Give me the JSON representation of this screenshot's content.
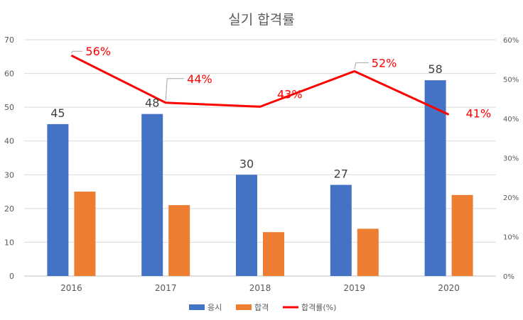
{
  "chart_data": {
    "type": "bar",
    "title": "실기 합격률",
    "categories": [
      "2016",
      "2017",
      "2018",
      "2019",
      "2020"
    ],
    "series": [
      {
        "name": "응시",
        "type": "bar",
        "axis": "left",
        "color": "#4472C4",
        "values": [
          45,
          48,
          30,
          27,
          58
        ]
      },
      {
        "name": "합격",
        "type": "bar",
        "axis": "left",
        "color": "#ED7D31",
        "values": [
          25,
          21,
          13,
          14,
          24
        ]
      },
      {
        "name": "합격률(%)",
        "type": "line",
        "axis": "right",
        "color": "#FF0000",
        "values": [
          56,
          44,
          43,
          52,
          41
        ]
      }
    ],
    "data_labels": {
      "applicants": [
        "45",
        "48",
        "30",
        "27",
        "58"
      ],
      "pass_rate": [
        "56%",
        "44%",
        "43%",
        "52%",
        "41%"
      ]
    },
    "y_left": {
      "min": 0,
      "max": 70,
      "step": 10,
      "ticks": [
        "0",
        "10",
        "20",
        "30",
        "40",
        "50",
        "60",
        "70"
      ]
    },
    "y_right": {
      "min": 0,
      "max": 60,
      "step": 10,
      "ticks": [
        "0%",
        "10%",
        "20%",
        "30%",
        "40%",
        "50%",
        "60%"
      ]
    },
    "grid": true,
    "legend_position": "bottom"
  }
}
